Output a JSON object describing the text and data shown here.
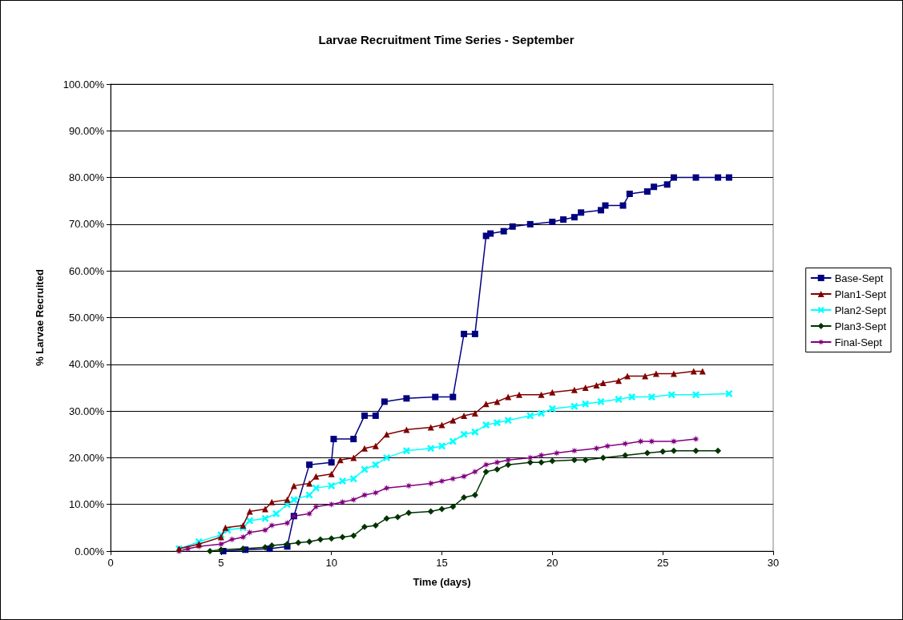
{
  "chart_data": {
    "type": "line",
    "title": "Larvae Recruitment Time Series - September",
    "xlabel": "Time (days)",
    "ylabel": "% Larvae Recruited",
    "xlim": [
      0,
      30
    ],
    "xticks": [
      0,
      5,
      10,
      15,
      20,
      25,
      30
    ],
    "ylim": [
      0,
      100
    ],
    "yticks": [
      {
        "value": 0,
        "label": "0.00%"
      },
      {
        "value": 10,
        "label": "10.00%"
      },
      {
        "value": 20,
        "label": "20.00%"
      },
      {
        "value": 30,
        "label": "30.00%"
      },
      {
        "value": 40,
        "label": "40.00%"
      },
      {
        "value": 50,
        "label": "50.00%"
      },
      {
        "value": 60,
        "label": "60.00%"
      },
      {
        "value": 70,
        "label": "70.00%"
      },
      {
        "value": 80,
        "label": "80.00%"
      },
      {
        "value": 90,
        "label": "90.00%"
      },
      {
        "value": 100,
        "label": "100.00%"
      }
    ],
    "grid": "y",
    "legend": "right",
    "line_style": "solid",
    "series": [
      {
        "name": "Base-Sept",
        "color": "#000080",
        "marker": "square",
        "x": [
          5.1,
          6.1,
          7.2,
          8.0,
          8.3,
          9.0,
          10.0,
          10.1,
          11.0,
          11.5,
          12.0,
          12.4,
          13.4,
          14.7,
          15.5,
          16.0,
          16.5,
          17.0,
          17.2,
          17.8,
          18.2,
          19.0,
          20.0,
          20.5,
          21.0,
          21.3,
          22.2,
          22.4,
          23.2,
          23.5,
          24.3,
          24.6,
          25.2,
          25.5,
          26.5,
          27.5,
          28.0
        ],
        "values": [
          0,
          0.3,
          0.5,
          1,
          7.5,
          18.5,
          19,
          24,
          24,
          29,
          29,
          32,
          32.7,
          33,
          33,
          46.5,
          46.5,
          67.5,
          68,
          68.5,
          69.5,
          70,
          70.5,
          71,
          71.5,
          72.5,
          73,
          74,
          74,
          76.5,
          77,
          78,
          78.5,
          80,
          80,
          80,
          80
        ]
      },
      {
        "name": "Plan1-Sept",
        "color": "#800000",
        "marker": "triangle",
        "x": [
          3.1,
          4.0,
          5.0,
          5.2,
          6.0,
          6.3,
          7.0,
          7.3,
          8.0,
          8.3,
          9.0,
          9.3,
          10.0,
          10.4,
          11.0,
          11.5,
          12.0,
          12.5,
          13.4,
          14.5,
          15.0,
          15.5,
          16.0,
          16.5,
          17.0,
          17.5,
          18.0,
          18.5,
          19.5,
          20.0,
          21.0,
          21.5,
          22.0,
          22.3,
          23.0,
          23.4,
          24.2,
          24.7,
          25.5,
          26.4,
          26.8
        ],
        "values": [
          0.5,
          1.5,
          3,
          5,
          5.5,
          8.5,
          9,
          10.5,
          11,
          14,
          14.5,
          16,
          16.5,
          19.5,
          20,
          22,
          22.5,
          25,
          26,
          26.5,
          27,
          28,
          29,
          29.5,
          31.5,
          32,
          33,
          33.5,
          33.5,
          34,
          34.5,
          35,
          35.5,
          36,
          36.5,
          37.5,
          37.5,
          38,
          38,
          38.5,
          38.5
        ]
      },
      {
        "name": "Plan2-Sept",
        "color": "#00ffff",
        "marker": "cross",
        "x": [
          3.1,
          4.0,
          5.0,
          5.3,
          6.0,
          6.3,
          7.0,
          7.5,
          8.0,
          8.3,
          9.0,
          9.3,
          10.0,
          10.5,
          11.0,
          11.5,
          12.0,
          12.5,
          13.4,
          14.5,
          15.0,
          15.5,
          16.0,
          16.5,
          17.0,
          17.5,
          18.0,
          19.0,
          19.5,
          20.0,
          21.0,
          21.5,
          22.2,
          23.0,
          23.6,
          24.5,
          25.4,
          26.5,
          28.0
        ],
        "values": [
          0.5,
          2,
          3.5,
          4.5,
          5,
          6.5,
          7,
          8,
          10,
          11,
          12,
          13.5,
          14,
          15,
          15.5,
          17.5,
          18.5,
          20,
          21.5,
          22,
          22.5,
          23.5,
          25,
          25.5,
          27,
          27.5,
          28,
          29,
          29.5,
          30.5,
          31,
          31.5,
          32,
          32.5,
          33,
          33,
          33.5,
          33.5,
          33.7
        ]
      },
      {
        "name": "Plan3-Sept",
        "color": "#003300",
        "marker": "diamond",
        "x": [
          4.5,
          5.0,
          6.0,
          7.0,
          7.3,
          8.0,
          8.5,
          9.0,
          9.5,
          10.0,
          10.5,
          11.0,
          11.5,
          12.0,
          12.5,
          13.0,
          13.5,
          14.5,
          15.0,
          15.5,
          16.0,
          16.5,
          17.0,
          17.5,
          18.0,
          19.0,
          19.5,
          20.0,
          21.0,
          21.5,
          22.3,
          23.3,
          24.3,
          25.0,
          25.5,
          26.5,
          27.5
        ],
        "values": [
          0,
          0.3,
          0.5,
          0.8,
          1.2,
          1.5,
          1.8,
          2,
          2.5,
          2.7,
          3,
          3.3,
          5.2,
          5.5,
          7,
          7.3,
          8.2,
          8.5,
          9,
          9.5,
          11.5,
          12,
          17,
          17.5,
          18.5,
          19,
          19,
          19.3,
          19.5,
          19.5,
          20,
          20.5,
          21,
          21.3,
          21.5,
          21.5,
          21.5
        ]
      },
      {
        "name": "Final-Sept",
        "color": "#800080",
        "marker": "star",
        "x": [
          3.1,
          3.5,
          4.0,
          5.0,
          5.5,
          6.0,
          6.3,
          7.0,
          7.3,
          8.0,
          8.3,
          9.0,
          9.3,
          10.0,
          10.5,
          11.0,
          11.5,
          12.0,
          12.5,
          13.5,
          14.5,
          15.0,
          15.5,
          16.0,
          16.5,
          17.0,
          17.5,
          18.0,
          19.0,
          19.5,
          20.2,
          21.0,
          22.0,
          22.5,
          23.3,
          24.0,
          24.5,
          25.5,
          26.5
        ],
        "values": [
          0,
          0.5,
          1,
          1.5,
          2.5,
          3,
          4,
          4.5,
          5.5,
          6,
          7.5,
          8,
          9.5,
          10,
          10.5,
          11,
          12,
          12.5,
          13.5,
          14,
          14.5,
          15,
          15.5,
          16,
          17,
          18.5,
          19,
          19.5,
          20,
          20.5,
          21,
          21.5,
          22,
          22.5,
          23,
          23.5,
          23.5,
          23.5,
          24
        ]
      }
    ]
  }
}
